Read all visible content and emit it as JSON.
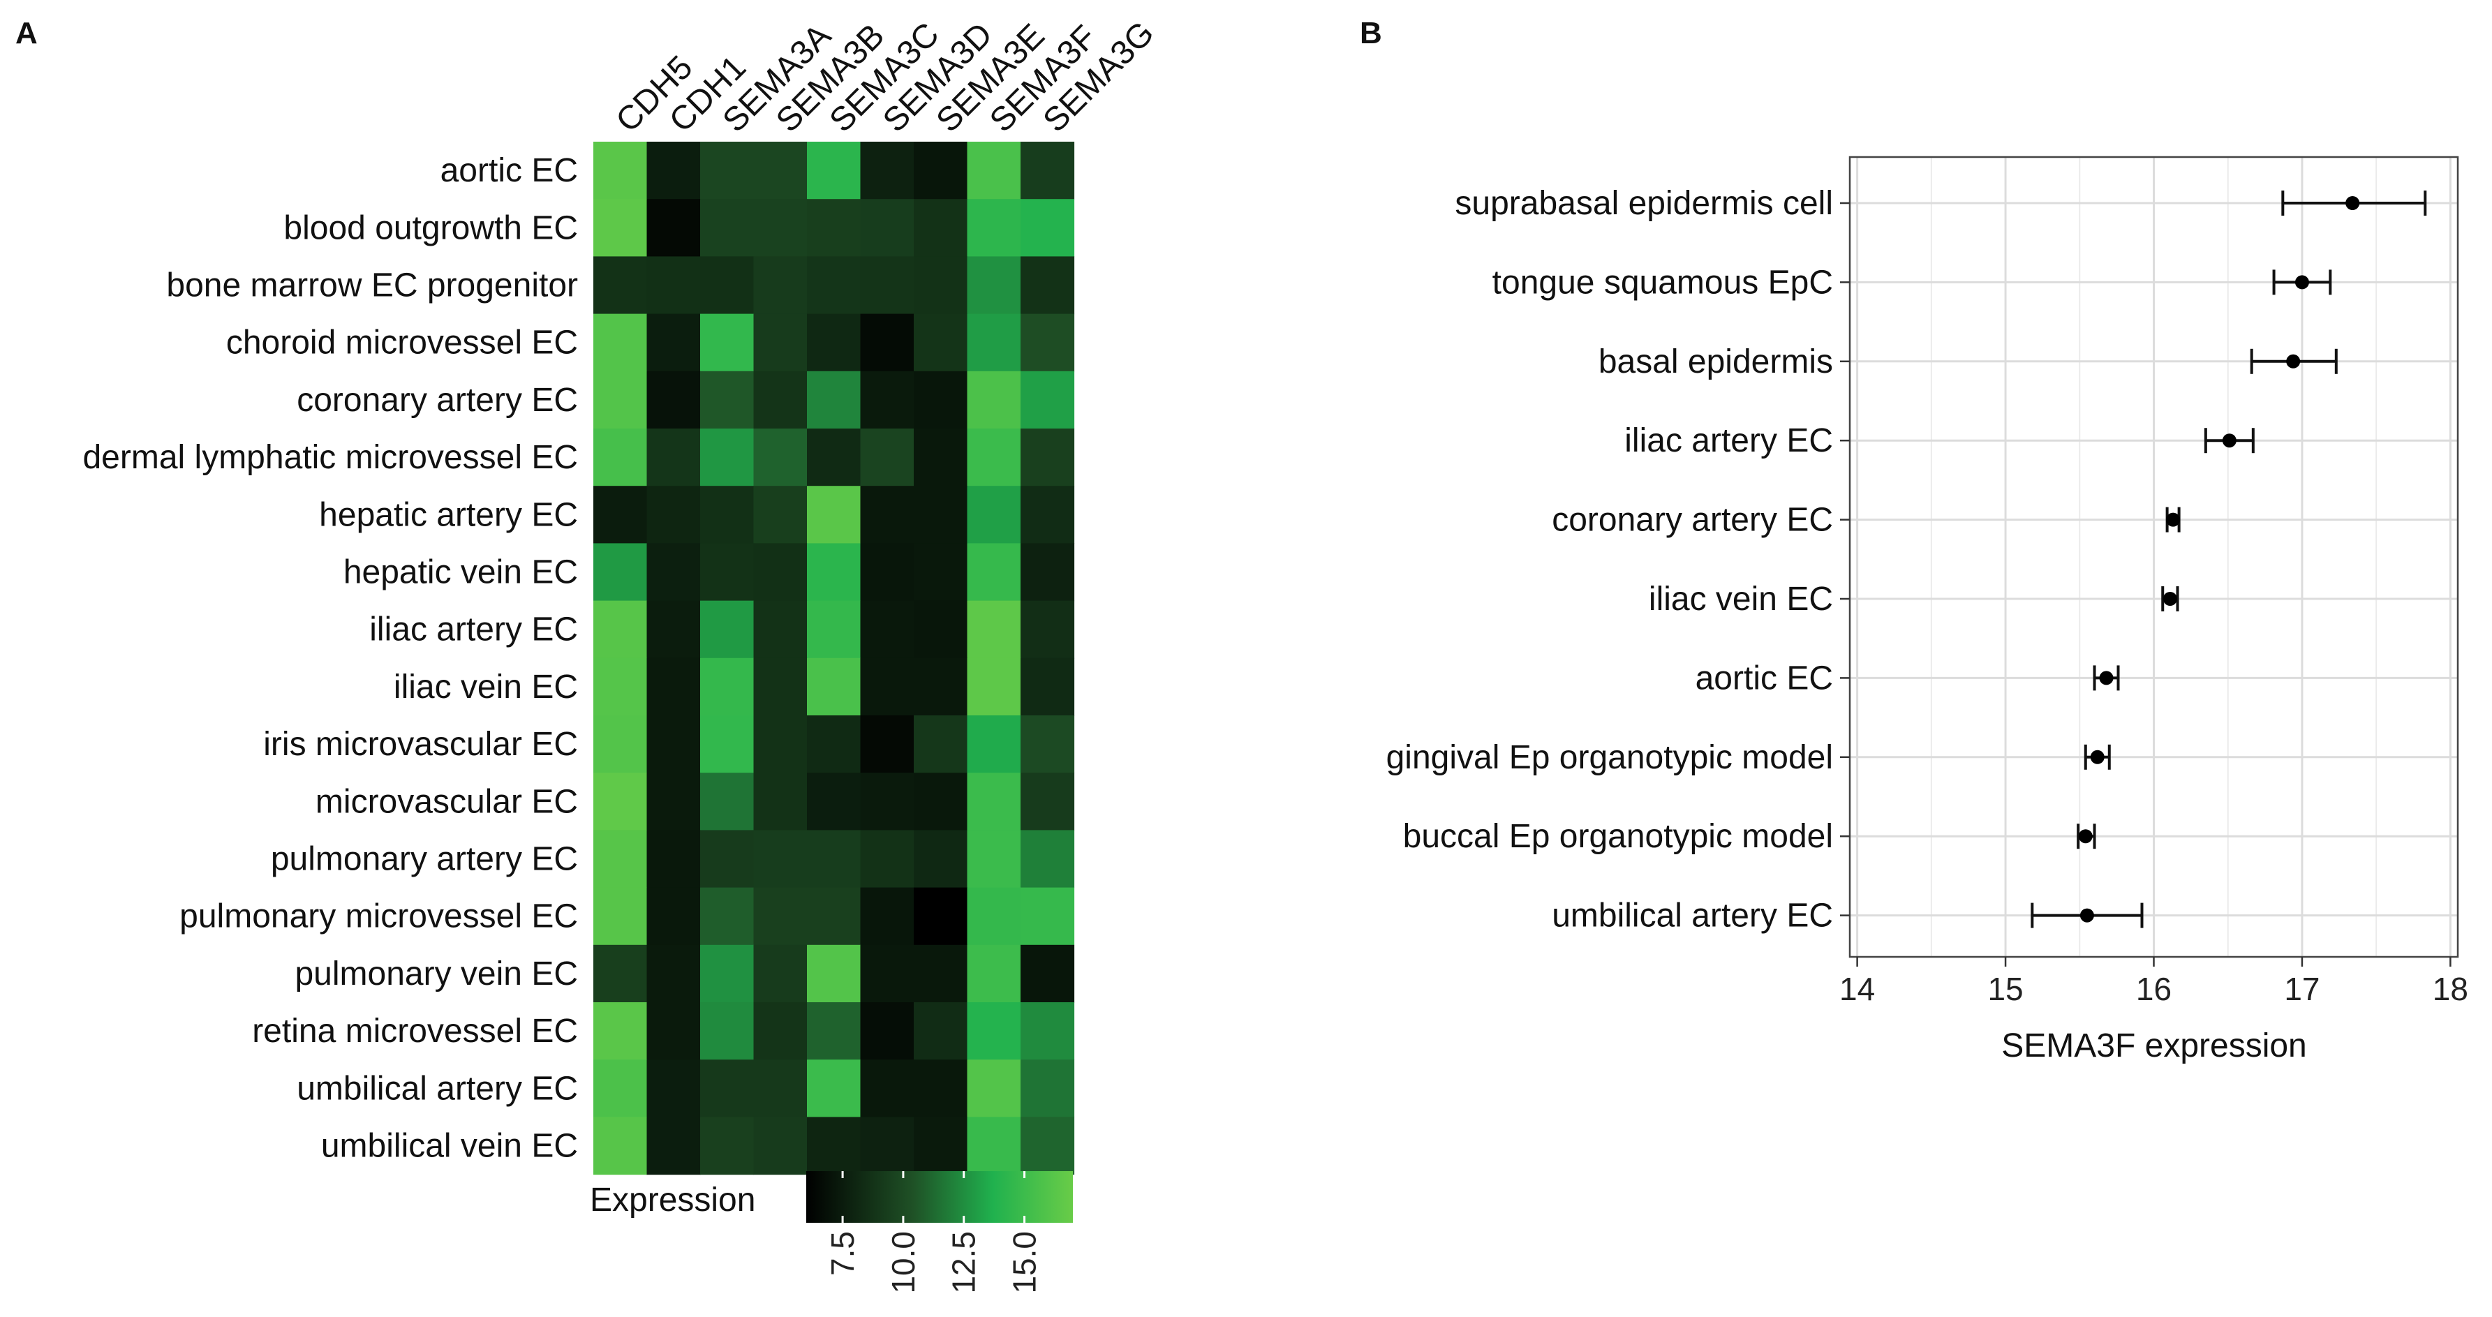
{
  "panels": {
    "a_label": "A",
    "b_label": "B"
  },
  "chart_data": [
    {
      "type": "heatmap",
      "panel": "A",
      "columns": [
        "CDH5",
        "CDH1",
        "SEMA3A",
        "SEMA3B",
        "SEMA3C",
        "SEMA3D",
        "SEMA3E",
        "SEMA3F",
        "SEMA3G"
      ],
      "rows": [
        "aortic EC",
        "blood outgrowth EC",
        "bone marrow EC progenitor",
        "choroid microvessel EC",
        "coronary artery EC",
        "dermal lymphatic microvessel EC",
        "hepatic artery EC",
        "hepatic vein EC",
        "iliac artery EC",
        "iliac vein EC",
        "iris microvascular EC",
        "microvascular EC",
        "pulmonary artery EC",
        "pulmonary microvessel EC",
        "pulmonary vein EC",
        "retina microvessel EC",
        "umbilical artery EC",
        "umbilical vein EC"
      ],
      "values": [
        [
          16.3,
          7.6,
          9.8,
          9.8,
          14.2,
          7.8,
          7.2,
          15.6,
          9.3
        ],
        [
          16.5,
          6.5,
          9.6,
          9.6,
          9.4,
          9.3,
          8.7,
          14.3,
          13.9
        ],
        [
          8.7,
          8.6,
          8.6,
          9.2,
          8.9,
          8.8,
          8.7,
          12.6,
          8.7
        ],
        [
          16.0,
          7.6,
          14.5,
          9.2,
          8.2,
          6.6,
          8.8,
          13.0,
          10.2
        ],
        [
          16.0,
          7.0,
          10.6,
          8.8,
          12.2,
          7.4,
          7.2,
          15.7,
          13.1
        ],
        [
          15.4,
          8.9,
          12.8,
          11.0,
          8.3,
          9.7,
          7.3,
          14.9,
          9.5
        ],
        [
          7.5,
          8.0,
          8.6,
          9.4,
          16.3,
          7.3,
          7.3,
          13.1,
          8.4
        ],
        [
          12.9,
          7.7,
          8.7,
          8.6,
          14.2,
          7.2,
          7.3,
          14.7,
          7.8
        ],
        [
          16.2,
          7.5,
          12.9,
          8.7,
          14.6,
          7.3,
          7.2,
          16.5,
          8.5
        ],
        [
          16.1,
          7.4,
          14.6,
          8.7,
          15.6,
          7.3,
          7.3,
          16.5,
          8.3
        ],
        [
          16.0,
          7.4,
          14.5,
          8.7,
          8.3,
          6.5,
          9.0,
          13.5,
          10.0
        ],
        [
          16.6,
          7.4,
          11.6,
          8.7,
          7.6,
          7.4,
          7.3,
          14.9,
          9.2
        ],
        [
          16.2,
          7.3,
          9.2,
          9.3,
          9.3,
          8.7,
          8.2,
          14.9,
          12.0
        ],
        [
          16.2,
          7.3,
          10.8,
          9.5,
          9.5,
          7.2,
          5.9,
          14.6,
          14.7
        ],
        [
          9.4,
          7.4,
          12.6,
          9.2,
          16.0,
          7.3,
          7.3,
          15.0,
          7.2
        ],
        [
          16.3,
          7.4,
          12.4,
          8.8,
          11.0,
          6.7,
          8.4,
          13.9,
          12.4
        ],
        [
          15.7,
          7.6,
          9.1,
          9.1,
          14.9,
          7.3,
          7.3,
          16.0,
          11.6
        ],
        [
          16.2,
          7.6,
          9.5,
          9.2,
          8.0,
          7.8,
          7.4,
          14.8,
          11.1
        ]
      ],
      "legend_title": "Expression",
      "legend_ticks": [
        "7.5",
        "10.0",
        "12.5",
        "15.0"
      ],
      "legend_tick_values": [
        7.5,
        10.0,
        12.5,
        15.0
      ],
      "value_range": [
        6,
        17
      ],
      "colorscale": [
        "#000000",
        "#1f5126",
        "#20b14e",
        "#69cc48"
      ]
    },
    {
      "type": "scatter",
      "panel": "B",
      "categories": [
        "suprabasal epidermis cell",
        "tongue squamous EpC",
        "basal epidermis",
        "iliac artery EC",
        "coronary artery EC",
        "iliac vein EC",
        "aortic EC",
        "gingival Ep organotypic model",
        "buccal Ep organotypic model",
        "umbilical artery EC"
      ],
      "values": [
        17.34,
        17.0,
        16.94,
        16.51,
        16.13,
        16.11,
        15.68,
        15.62,
        15.54,
        15.55
      ],
      "error_low": [
        16.87,
        16.81,
        16.66,
        16.35,
        16.09,
        16.06,
        15.6,
        15.54,
        15.49,
        15.18
      ],
      "error_high": [
        17.83,
        17.19,
        17.23,
        16.67,
        16.17,
        16.16,
        15.76,
        15.7,
        15.6,
        15.92
      ],
      "xlabel": "SEMA3F expression",
      "xlim": [
        13.95,
        18.05
      ],
      "xticks": [
        14,
        15,
        16,
        17,
        18
      ],
      "grid": true
    }
  ]
}
